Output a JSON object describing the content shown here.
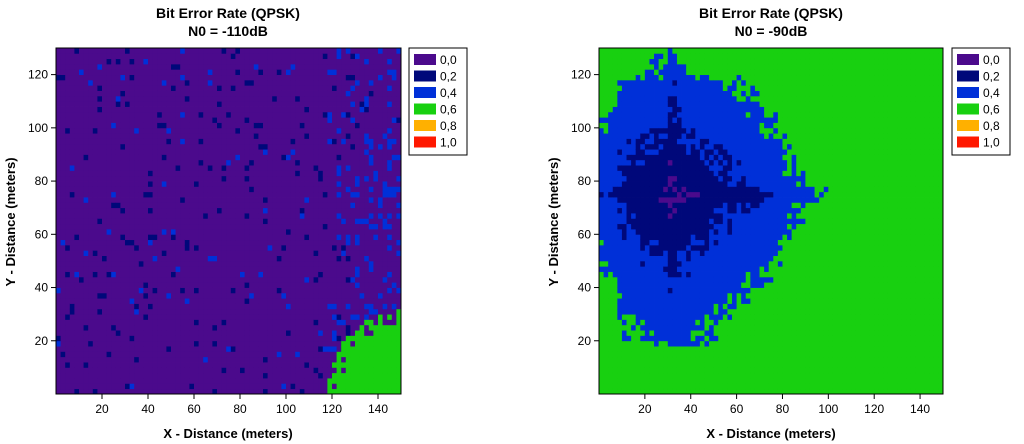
{
  "legend": {
    "levels": [
      "0,0",
      "0,2",
      "0,4",
      "0,6",
      "0,8",
      "1,0"
    ],
    "colors": [
      "#4b0a8c",
      "#00087a",
      "#0030d8",
      "#18d010",
      "#ffb000",
      "#ff1800"
    ]
  },
  "chart_data": [
    {
      "type": "heatmap",
      "title": "Bit Error Rate (QPSK)",
      "subtitle": "N0 = -110dB",
      "xlabel": "X - Distance (meters)",
      "ylabel": "Y - Distance (meters)",
      "xlim": [
        0,
        150
      ],
      "ylim": [
        0,
        130
      ],
      "xticks": [
        20,
        40,
        60,
        80,
        100,
        120,
        140
      ],
      "yticks": [
        20,
        40,
        60,
        80,
        100,
        120
      ],
      "legend_position": "right",
      "regions": [
        {
          "value": 0.0,
          "area": "most of field"
        },
        {
          "value": 0.2,
          "area": "right edge speckle"
        },
        {
          "value": 0.4,
          "area": "scattered speckle"
        },
        {
          "value": 0.6,
          "area": "bottom-right corner x>135, y<25"
        }
      ]
    },
    {
      "type": "heatmap",
      "title": "Bit Error Rate (QPSK)",
      "subtitle": "N0 = -90dB",
      "xlabel": "X - Distance (meters)",
      "ylabel": "Y - Distance (meters)",
      "xlim": [
        0,
        150
      ],
      "ylim": [
        0,
        130
      ],
      "xticks": [
        20,
        40,
        60,
        80,
        100,
        120,
        140
      ],
      "yticks": [
        20,
        40,
        60,
        80,
        100,
        120
      ],
      "legend_position": "right",
      "regions": [
        {
          "value": 0.0,
          "area": "centred near x=32, y=75"
        },
        {
          "value": 0.2,
          "area": "around low-BER centre"
        },
        {
          "value": 0.4,
          "area": "most of field"
        },
        {
          "value": 0.6,
          "area": "edges and right side"
        }
      ]
    }
  ]
}
